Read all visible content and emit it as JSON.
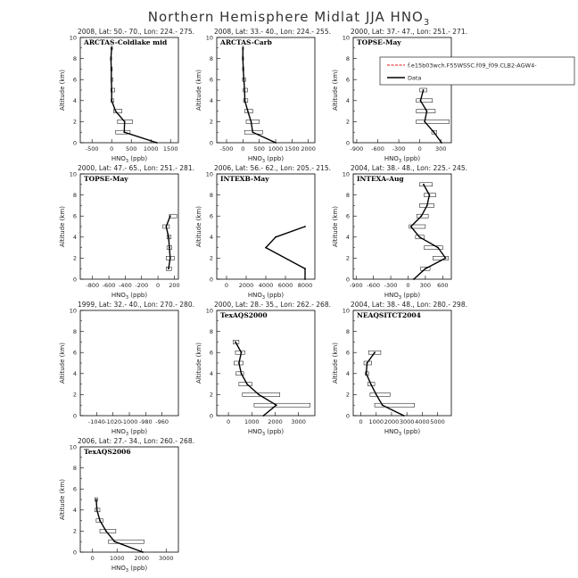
{
  "title": "Northern Hemisphere Midlat JJA HNO",
  "title_sub": "3",
  "legend": {
    "model_label": "f.e15b03wch.F55WSSC.f09_f09.CLB2-AGW4-",
    "model_color": "#e8141b",
    "obs_label": "Data",
    "obs_color": "#000000"
  },
  "xlabel_main": "HNO",
  "xlabel_sub": "3",
  "xlabel_unit": " (ppb)",
  "ylabel": "Altitude (km)",
  "chart_data": [
    {
      "type": "line",
      "header": "2008, Lat: 50.- 70., Lon: 224.- 275.",
      "campaign": "ARCTAS-Coldlake mid",
      "xlim": [
        -800,
        1700
      ],
      "xticks": [
        -500,
        0,
        500,
        1000,
        1500
      ],
      "ylim": [
        0,
        10
      ],
      "series": [
        {
          "points": [
            [
              1150,
              0
            ],
            [
              320,
              1
            ],
            [
              330,
              2
            ],
            [
              100,
              3
            ],
            [
              0,
              4
            ],
            [
              0,
              5
            ],
            [
              -10,
              6
            ],
            [
              -10,
              7
            ],
            [
              -20,
              8
            ],
            [
              0,
              9
            ]
          ],
          "bars": [
            [
              1,
              100,
              470
            ],
            [
              2,
              150,
              530
            ],
            [
              3,
              50,
              260
            ],
            [
              4,
              -15,
              50
            ],
            [
              5,
              -20,
              80
            ],
            [
              6,
              -20,
              30
            ],
            [
              7,
              -25,
              15
            ],
            [
              8,
              -30,
              0
            ],
            [
              9,
              -20,
              20
            ]
          ]
        }
      ]
    },
    {
      "type": "line",
      "header": "2008, Lat: 33.- 40., Lon: 224.- 255.",
      "campaign": "ARCTAS-Carb",
      "xlim": [
        -800,
        2200
      ],
      "xticks": [
        -500,
        0,
        500,
        1000,
        1500,
        2000
      ],
      "ylim": [
        0,
        10
      ],
      "series": [
        {
          "points": [
            [
              1000,
              0
            ],
            [
              300,
              1
            ],
            [
              250,
              2
            ],
            [
              150,
              3
            ],
            [
              60,
              4
            ],
            [
              50,
              5
            ],
            [
              30,
              6
            ],
            [
              10,
              7
            ],
            [
              0,
              8
            ],
            [
              0,
              9
            ]
          ],
          "bars": [
            [
              1,
              50,
              600
            ],
            [
              2,
              100,
              500
            ],
            [
              3,
              60,
              300
            ],
            [
              4,
              20,
              150
            ],
            [
              5,
              10,
              140
            ],
            [
              6,
              -10,
              80
            ],
            [
              7,
              -10,
              30
            ],
            [
              8,
              -20,
              20
            ],
            [
              9,
              -10,
              10
            ]
          ]
        }
      ]
    },
    {
      "type": "line",
      "header": "2000, Lat: 37.- 47., Lon: 251.- 271.",
      "campaign": "TOPSE-May",
      "xlim": [
        -950,
        450
      ],
      "xticks": [
        -900,
        -600,
        -300,
        0,
        300
      ],
      "ylim": [
        0,
        10
      ],
      "show_legend": true,
      "series": [
        {
          "points": [
            [
              310,
              0
            ],
            [
              200,
              1
            ],
            [
              70,
              2
            ],
            [
              100,
              3
            ],
            [
              10,
              4
            ],
            [
              50,
              5
            ]
          ],
          "bars": [
            [
              1,
              170,
              240
            ],
            [
              2,
              -50,
              420
            ],
            [
              3,
              -50,
              220
            ],
            [
              4,
              -50,
              180
            ],
            [
              5,
              0,
              100
            ]
          ]
        }
      ]
    },
    {
      "type": "line",
      "header": "2000, Lat: 47.- 65., Lon: 251.- 281.",
      "campaign": "TOPSE-May",
      "xlim": [
        -950,
        250
      ],
      "xticks": [
        -800,
        -600,
        -400,
        -200,
        0,
        200
      ],
      "ylim": [
        0,
        10
      ],
      "series": [
        {
          "points": [
            [
              130,
              1
            ],
            [
              150,
              2
            ],
            [
              140,
              3
            ],
            [
              130,
              4
            ],
            [
              100,
              5
            ],
            [
              150,
              6
            ]
          ],
          "bars": [
            [
              1,
              100,
              165
            ],
            [
              2,
              100,
              200
            ],
            [
              3,
              110,
              170
            ],
            [
              4,
              110,
              160
            ],
            [
              5,
              60,
              140
            ],
            [
              6,
              140,
              230
            ]
          ]
        }
      ]
    },
    {
      "type": "line",
      "header": "2006, Lat: 56.- 62., Lon: 205.- 215.",
      "campaign": "INTEXB-May",
      "xlim": [
        -1000,
        9000
      ],
      "xticks": [
        0,
        2000,
        4000,
        6000,
        8000
      ],
      "ylim": [
        0,
        10
      ],
      "series": [
        {
          "points": [
            [
              8000,
              0
            ],
            [
              8000,
              1
            ],
            [
              4000,
              3
            ],
            [
              5000,
              4
            ],
            [
              8000,
              5
            ]
          ],
          "bars": []
        }
      ]
    },
    {
      "type": "line",
      "header": "2004, Lat: 38.- 48., Lon: 225.- 245.",
      "campaign": "INTEXA-Aug",
      "xlim": [
        -950,
        750
      ],
      "xticks": [
        -900,
        -600,
        -300,
        0,
        300,
        600
      ],
      "ylim": [
        0,
        10
      ],
      "series": [
        {
          "points": [
            [
              100,
              0
            ],
            [
              300,
              1
            ],
            [
              650,
              2
            ],
            [
              520,
              3
            ],
            [
              200,
              4
            ],
            [
              50,
              5
            ],
            [
              230,
              6
            ],
            [
              330,
              7
            ],
            [
              370,
              8
            ],
            [
              270,
              9
            ]
          ],
          "bars": [
            [
              1,
              220,
              380
            ],
            [
              2,
              430,
              700
            ],
            [
              3,
              280,
              600
            ],
            [
              4,
              130,
              280
            ],
            [
              5,
              20,
              300
            ],
            [
              6,
              150,
              350
            ],
            [
              7,
              200,
              450
            ],
            [
              8,
              280,
              480
            ],
            [
              9,
              200,
              420
            ]
          ]
        }
      ]
    },
    {
      "type": "line",
      "header": "1999, Lat: 32.- 40., Lon: 270.- 280.",
      "campaign": "",
      "xlim": [
        -1060,
        -940
      ],
      "xticks": [
        -1040,
        -1020,
        -1000,
        -980,
        -960
      ],
      "ylim": [
        0,
        10
      ],
      "series": []
    },
    {
      "type": "line",
      "header": "2000, Lat: 28.- 35., Lon: 262.- 268.",
      "campaign": "TexAQS2000",
      "xlim": [
        -500,
        3700
      ],
      "xticks": [
        0,
        1000,
        2000,
        3000
      ],
      "ylim": [
        0,
        10
      ],
      "series": [
        {
          "points": [
            [
              1500,
              0
            ],
            [
              2050,
              1
            ],
            [
              1300,
              2
            ],
            [
              800,
              3
            ],
            [
              550,
              4
            ],
            [
              450,
              5
            ],
            [
              550,
              6
            ],
            [
              300,
              7
            ]
          ],
          "bars": [
            [
              1,
              1100,
              3500
            ],
            [
              2,
              600,
              2200
            ],
            [
              3,
              450,
              1000
            ],
            [
              4,
              330,
              650
            ],
            [
              5,
              240,
              630
            ],
            [
              6,
              300,
              700
            ],
            [
              7,
              200,
              450
            ]
          ]
        }
      ]
    },
    {
      "type": "line",
      "header": "2004, Lat: 38.- 48., Lon: 280.- 298.",
      "campaign": "NEAQSITCT2004",
      "xlim": [
        -500,
        5900
      ],
      "xticks": [
        0,
        1000,
        2000,
        3000,
        4000,
        5000
      ],
      "ylim": [
        0,
        10
      ],
      "series": [
        {
          "points": [
            [
              2800,
              0
            ],
            [
              1400,
              1
            ],
            [
              1000,
              2
            ],
            [
              650,
              3
            ],
            [
              350,
              4
            ],
            [
              400,
              5
            ],
            [
              900,
              6
            ]
          ],
          "bars": [
            [
              1,
              900,
              3500
            ],
            [
              2,
              600,
              1900
            ],
            [
              3,
              450,
              900
            ],
            [
              4,
              280,
              500
            ],
            [
              5,
              200,
              700
            ],
            [
              6,
              500,
              1300
            ]
          ]
        }
      ]
    },
    {
      "type": "line",
      "header": "2006, Lat: 27.- 34., Lon: 260.- 268.",
      "campaign": "TexAQS2006",
      "xlim": [
        -500,
        3500
      ],
      "xticks": [
        0,
        1000,
        2000,
        3000
      ],
      "ylim": [
        0,
        10
      ],
      "series": [
        {
          "points": [
            [
              2050,
              0
            ],
            [
              900,
              1
            ],
            [
              550,
              2
            ],
            [
              300,
              3
            ],
            [
              180,
              4
            ],
            [
              150,
              5
            ]
          ],
          "bars": [
            [
              1,
              650,
              2100
            ],
            [
              2,
              300,
              950
            ],
            [
              3,
              150,
              420
            ],
            [
              4,
              100,
              300
            ],
            [
              5,
              90,
              200
            ]
          ]
        }
      ]
    }
  ]
}
